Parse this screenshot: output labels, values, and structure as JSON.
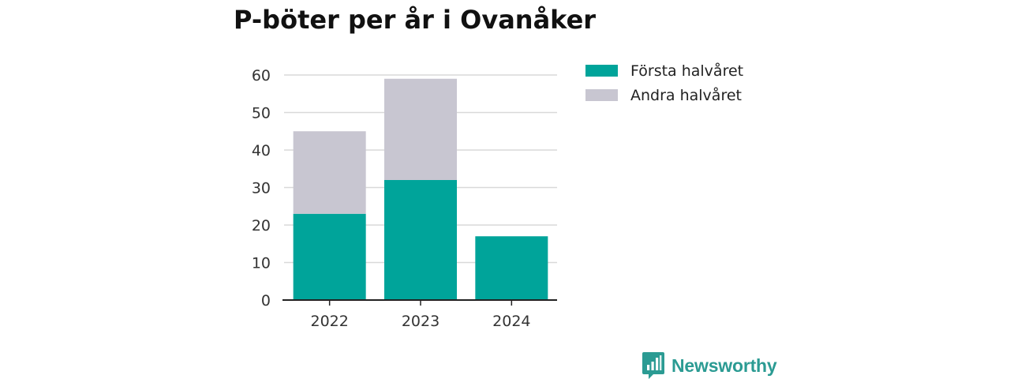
{
  "title": "P-böter per år i Ovanåker",
  "brand": {
    "name": "Newsworthy",
    "icon": "bar-chart-speech-bubble-icon",
    "color": "#2b9b93"
  },
  "colors": {
    "first": "#00a49a",
    "second": "#c8c6d1",
    "grid": "#d9d9d9",
    "axis": "#222222",
    "text": "#333333"
  },
  "chart_data": {
    "type": "bar",
    "stacked": true,
    "categories": [
      "2022",
      "2023",
      "2024"
    ],
    "series": [
      {
        "name": "Första halvåret",
        "values": [
          23,
          32,
          17
        ],
        "color": "#00a49a"
      },
      {
        "name": "Andra halvåret",
        "values": [
          22,
          27,
          0
        ],
        "color": "#c8c6d1"
      }
    ],
    "yticks": [
      0,
      10,
      20,
      30,
      40,
      50,
      60
    ],
    "ylim": [
      0,
      60
    ],
    "grid": true,
    "legend": "right"
  }
}
